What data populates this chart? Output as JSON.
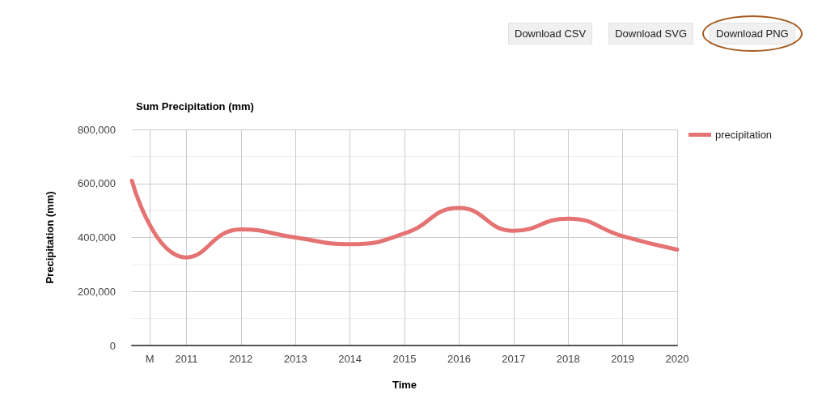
{
  "chart_data": {
    "type": "line",
    "title": "Sum Precipitation (mm)",
    "xlabel": "Time",
    "ylabel": "Precipitation (mm)",
    "annotations": [
      "Download CSV",
      "Download SVG",
      "Download PNG"
    ],
    "x": [
      2010,
      2011,
      2012,
      2013,
      2014,
      2015,
      2016,
      2017,
      2018,
      2019,
      2020
    ],
    "series": [
      {
        "name": "precipitation",
        "color": "#e57373",
        "values": [
          610000,
          326000,
          430000,
          400000,
          375000,
          415000,
          509000,
          425000,
          470000,
          405000,
          355000
        ]
      }
    ],
    "xlim": [
      2010,
      2020
    ],
    "xticks": [
      {
        "value": 2010.33,
        "label": "M"
      },
      2011,
      2012,
      2013,
      2014,
      2015,
      2016,
      2017,
      2018,
      2019,
      2020
    ],
    "ylim": [
      0,
      800000
    ],
    "yticks": [
      0,
      {
        "value": 200000,
        "label": "200,000"
      },
      {
        "value": 400000,
        "label": "400,000"
      },
      {
        "value": 600000,
        "label": "600,000"
      },
      {
        "value": 800000,
        "label": "800,000"
      }
    ],
    "grid": true,
    "legend": "top right",
    "marker": "none",
    "line_style": "solid"
  }
}
